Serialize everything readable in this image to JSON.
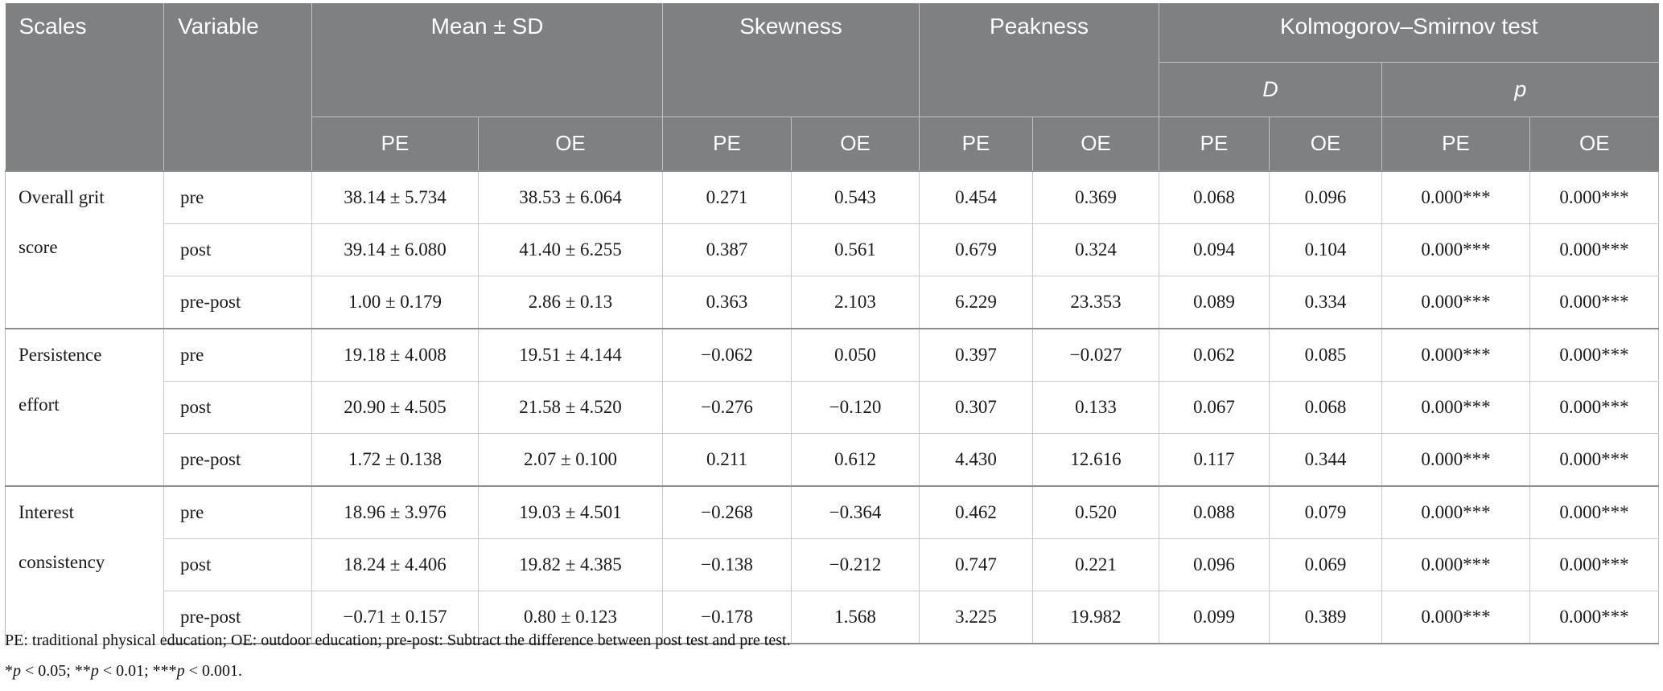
{
  "colors": {
    "header_bg": "#7e8081",
    "header_text": "#ffffff",
    "grid_light": "#c9c9c9",
    "grid_dark": "#8d8d8d",
    "body_text": "#1a1a1a"
  },
  "header": {
    "scales": "Scales",
    "variable": "Variable",
    "mean_sd": "Mean ± SD",
    "skewness": "Skewness",
    "peakness": "Peakness",
    "ks_test": "Kolmogorov–Smirnov test",
    "d_label": "D",
    "p_label": "p",
    "pe": "PE",
    "oe": "OE"
  },
  "column_keys": [
    "mean_pe",
    "mean_oe",
    "skew_pe",
    "skew_oe",
    "peak_pe",
    "peak_oe",
    "d_pe",
    "d_oe",
    "p_pe",
    "p_oe"
  ],
  "groups": [
    {
      "scale": "Overall grit score",
      "rows": [
        {
          "variable": "pre",
          "values": [
            "38.14 ± 5.734",
            "38.53 ± 6.064",
            "0.271",
            "0.543",
            "0.454",
            "0.369",
            "0.068",
            "0.096",
            "0.000***",
            "0.000***"
          ]
        },
        {
          "variable": "post",
          "values": [
            "39.14 ± 6.080",
            "41.40 ± 6.255",
            "0.387",
            "0.561",
            "0.679",
            "0.324",
            "0.094",
            "0.104",
            "0.000***",
            "0.000***"
          ]
        },
        {
          "variable": "pre-post",
          "values": [
            "1.00 ± 0.179",
            "2.86 ± 0.13",
            "0.363",
            "2.103",
            "6.229",
            "23.353",
            "0.089",
            "0.334",
            "0.000***",
            "0.000***"
          ]
        }
      ]
    },
    {
      "scale": "Persistence effort",
      "rows": [
        {
          "variable": "pre",
          "values": [
            "19.18 ± 4.008",
            "19.51 ± 4.144",
            "−0.062",
            "0.050",
            "0.397",
            "−0.027",
            "0.062",
            "0.085",
            "0.000***",
            "0.000***"
          ]
        },
        {
          "variable": "post",
          "values": [
            "20.90 ± 4.505",
            "21.58 ± 4.520",
            "−0.276",
            "−0.120",
            "0.307",
            "0.133",
            "0.067",
            "0.068",
            "0.000***",
            "0.000***"
          ]
        },
        {
          "variable": "pre-post",
          "values": [
            "1.72 ± 0.138",
            "2.07 ± 0.100",
            "0.211",
            "0.612",
            "4.430",
            "12.616",
            "0.117",
            "0.344",
            "0.000***",
            "0.000***"
          ]
        }
      ]
    },
    {
      "scale": "Interest consistency",
      "rows": [
        {
          "variable": "pre",
          "values": [
            "18.96 ± 3.976",
            "19.03 ± 4.501",
            "−0.268",
            "−0.364",
            "0.462",
            "0.520",
            "0.088",
            "0.079",
            "0.000***",
            "0.000***"
          ]
        },
        {
          "variable": "post",
          "values": [
            "18.24 ± 4.406",
            "19.82 ± 4.385",
            "−0.138",
            "−0.212",
            "0.747",
            "0.221",
            "0.096",
            "0.069",
            "0.000***",
            "0.000***"
          ]
        },
        {
          "variable": "pre-post",
          "values": [
            "−0.71 ± 0.157",
            "0.80 ± 0.123",
            "−0.178",
            "1.568",
            "3.225",
            "19.982",
            "0.099",
            "0.389",
            "0.000***",
            "0.000***"
          ]
        }
      ]
    }
  ],
  "footnotes": {
    "line1": "PE: traditional physical education; OE: outdoor education; pre-post: Subtract the difference between post test and pre test.",
    "line2_segments": [
      {
        "text": "*"
      },
      {
        "text": "p",
        "italic": true
      },
      {
        "text": " < 0.05; **"
      },
      {
        "text": "p",
        "italic": true
      },
      {
        "text": " < 0.01; ***"
      },
      {
        "text": "p",
        "italic": true
      },
      {
        "text": " < 0.001."
      }
    ]
  }
}
